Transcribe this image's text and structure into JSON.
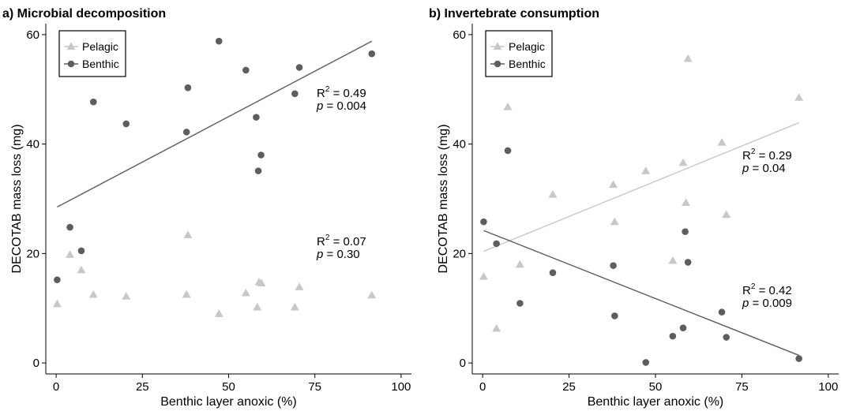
{
  "legend_entries": [
    "Pelagic",
    "Benthic"
  ],
  "colors": {
    "pelagic": "#c8c8c8",
    "benthic": "#5e5e5e"
  },
  "chart_data": [
    {
      "type": "scatter",
      "title": "a) Microbial decomposition",
      "xlabel": "Benthic layer anoxic (%)",
      "ylabel": "DECOTAB mass loss (mg)",
      "xlim": [
        -3,
        103
      ],
      "ylim": [
        -2,
        62
      ],
      "xticks": [
        0,
        25,
        50,
        75,
        100
      ],
      "yticks": [
        0,
        20,
        40,
        60
      ],
      "grid": false,
      "legend_position": "top-left",
      "series": [
        {
          "name": "Pelagic",
          "marker": "triangle",
          "points": [
            [
              0.3,
              10.8
            ],
            [
              4,
              19.8
            ],
            [
              7.3,
              17
            ],
            [
              10.8,
              12.5
            ],
            [
              20.3,
              12.2
            ],
            [
              37.8,
              12.5
            ],
            [
              38.2,
              23.4
            ],
            [
              47.2,
              9
            ],
            [
              55,
              12.8
            ],
            [
              58.3,
              10.2
            ],
            [
              58.8,
              14.8
            ],
            [
              59.5,
              14.6
            ],
            [
              69.2,
              10.2
            ],
            [
              70.5,
              13.9
            ],
            [
              91.5,
              12.4
            ]
          ],
          "fit": null,
          "stats": {
            "r2": "0.07",
            "p": "0.30"
          }
        },
        {
          "name": "Benthic",
          "marker": "circle",
          "points": [
            [
              0.3,
              15.2
            ],
            [
              4,
              24.8
            ],
            [
              7.3,
              20.5
            ],
            [
              10.8,
              47.7
            ],
            [
              20.3,
              43.7
            ],
            [
              37.8,
              42.2
            ],
            [
              38.2,
              50.3
            ],
            [
              47.2,
              58.8
            ],
            [
              55,
              53.5
            ],
            [
              58,
              44.9
            ],
            [
              58.6,
              35.1
            ],
            [
              59.4,
              38
            ],
            [
              69.2,
              49.2
            ],
            [
              70.5,
              54
            ],
            [
              91.5,
              56.5
            ]
          ],
          "fit": {
            "x": [
              0.3,
              91.5
            ],
            "y": [
              28.5,
              58.8
            ]
          },
          "stats": {
            "r2": "0.49",
            "p": "0.004"
          }
        }
      ]
    },
    {
      "type": "scatter",
      "title": "b) Invertebrate consumption",
      "xlabel": "Benthic layer anoxic (%)",
      "ylabel": "DECOTAB mass loss (mg)",
      "xlim": [
        -3,
        103
      ],
      "ylim": [
        -2,
        62
      ],
      "xticks": [
        0,
        25,
        50,
        75,
        100
      ],
      "yticks": [
        0,
        20,
        40,
        60
      ],
      "grid": false,
      "legend_position": "top-left",
      "series": [
        {
          "name": "Pelagic",
          "marker": "triangle",
          "points": [
            [
              0.3,
              15.8
            ],
            [
              4,
              6.3
            ],
            [
              7.3,
              46.8
            ],
            [
              10.8,
              18
            ],
            [
              20.3,
              30.8
            ],
            [
              37.8,
              32.6
            ],
            [
              38.2,
              25.8
            ],
            [
              47.2,
              35.1
            ],
            [
              55,
              18.7
            ],
            [
              58,
              36.6
            ],
            [
              58.8,
              29.3
            ],
            [
              59.4,
              55.6
            ],
            [
              69.2,
              40.3
            ],
            [
              70.5,
              27.1
            ],
            [
              91.5,
              48.5
            ]
          ],
          "fit": {
            "x": [
              0.3,
              91.5
            ],
            "y": [
              20.4,
              43.9
            ]
          },
          "stats": {
            "r2": "0.29",
            "p": "0.04"
          }
        },
        {
          "name": "Benthic",
          "marker": "circle",
          "points": [
            [
              0.3,
              25.8
            ],
            [
              4,
              21.8
            ],
            [
              7.3,
              38.8
            ],
            [
              10.8,
              10.9
            ],
            [
              20.3,
              16.5
            ],
            [
              37.8,
              17.8
            ],
            [
              38.2,
              8.6
            ],
            [
              47.2,
              0.1
            ],
            [
              55,
              4.9
            ],
            [
              58,
              6.4
            ],
            [
              58.6,
              24
            ],
            [
              59.4,
              18.4
            ],
            [
              69.2,
              9.3
            ],
            [
              70.5,
              4.7
            ],
            [
              91.5,
              0.8
            ]
          ],
          "fit": {
            "x": [
              0.3,
              91.5
            ],
            "y": [
              24.2,
              1.4
            ]
          },
          "stats": {
            "r2": "0.42",
            "p": "0.009"
          }
        }
      ]
    }
  ]
}
